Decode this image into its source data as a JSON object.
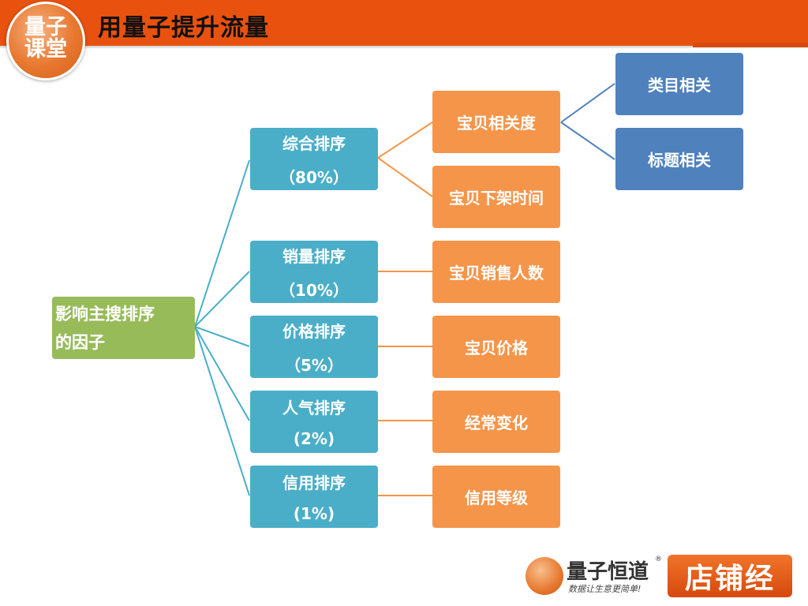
{
  "header": {
    "title": "用量子提升流量",
    "logo_text_1": "量子",
    "logo_text_2": "课堂"
  },
  "diagram": {
    "root": {
      "line1": "影响主搜排序",
      "line2": "的因子"
    },
    "factors": [
      {
        "name": "综合排序",
        "weight": "（80%）"
      },
      {
        "name": "销量排序",
        "weight": "（10%）"
      },
      {
        "name": "价格排序",
        "weight": "（5%）"
      },
      {
        "name": "人气排序",
        "weight": "(2%)"
      },
      {
        "name": "信用排序",
        "weight": "(1%)"
      }
    ],
    "details": [
      "宝贝相关度",
      "宝贝下架时间",
      "宝贝销售人数",
      "宝贝价格",
      "经常变化",
      "信用等级"
    ],
    "sub_details": [
      "类目相关",
      "标题相关"
    ]
  },
  "footer": {
    "brand": "量子恒道",
    "registered": "®",
    "slogan": "数据让生意更简单!",
    "product": "店铺经"
  },
  "colors": {
    "header": "#e8520e",
    "root": "#98bb5a",
    "factor": "#4aaec8",
    "detail": "#f5954a",
    "sub_detail": "#4f81bd"
  }
}
